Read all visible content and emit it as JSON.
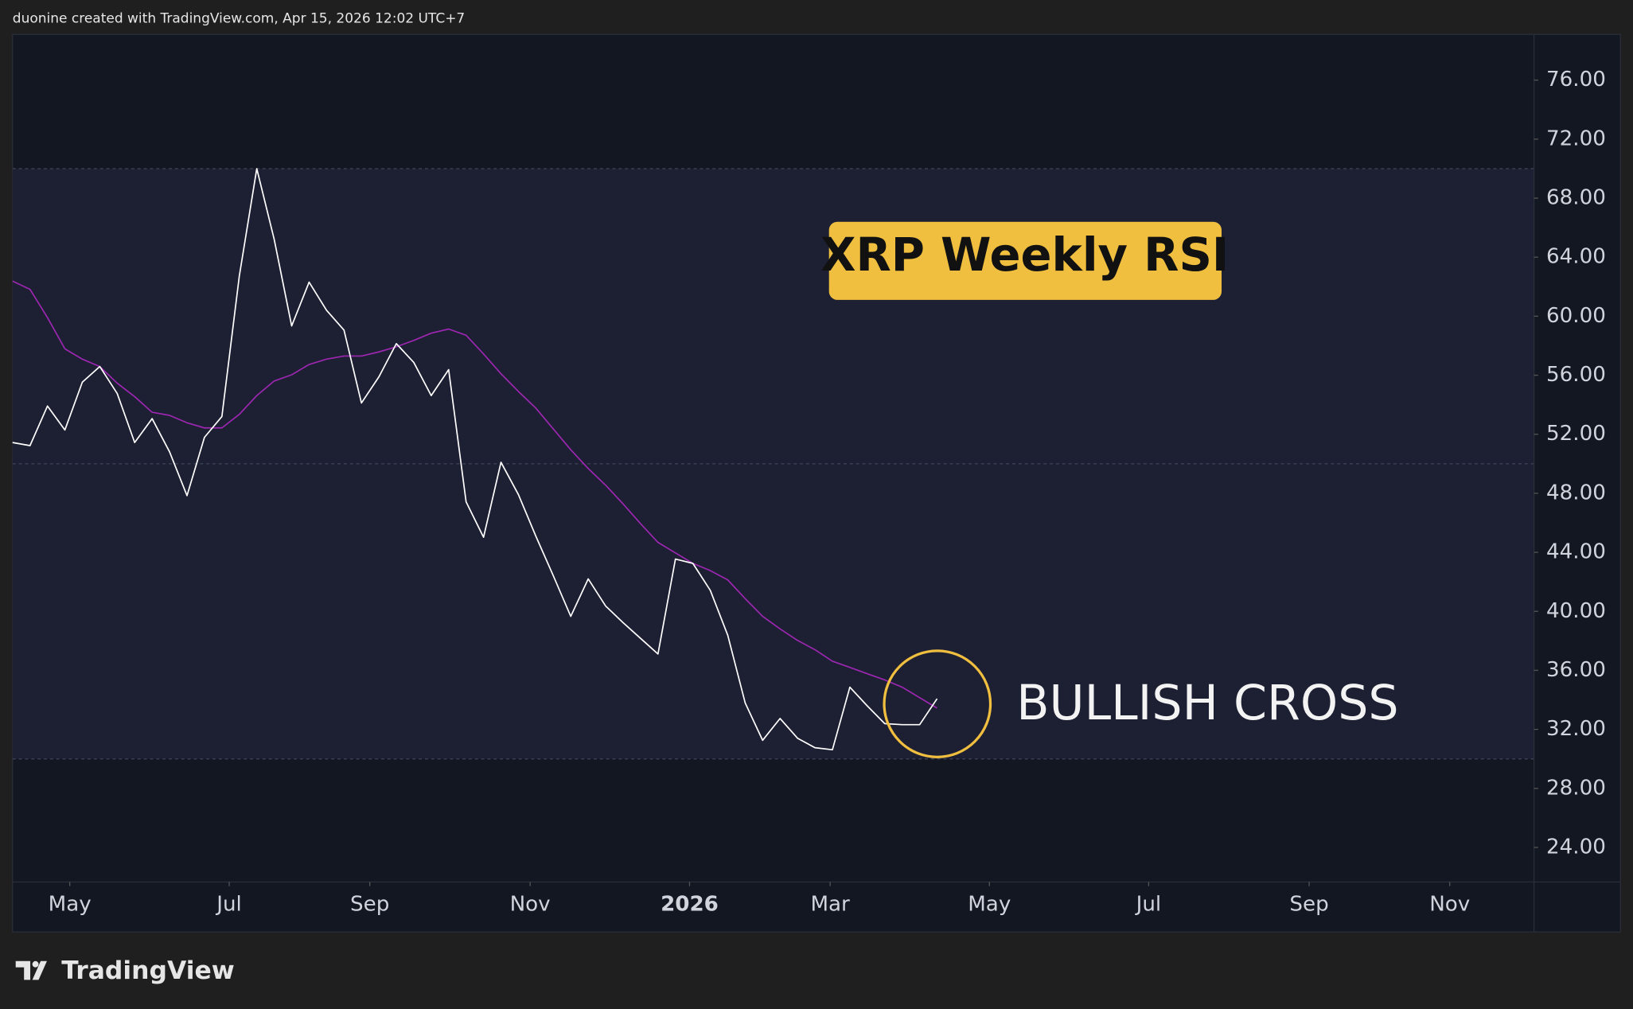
{
  "chart_data": {
    "type": "line",
    "caption": "duonine created with TradingView.com, Apr 15, 2026 12:02 UTC+7",
    "title": "XRP Weekly RSI",
    "annotation": "BULLISH CROSS",
    "brand": "TradingView",
    "x": [
      0,
      1,
      2,
      3,
      4,
      5,
      6,
      7,
      8,
      9,
      10,
      11,
      12,
      13,
      14,
      15,
      16,
      17,
      18,
      19,
      20,
      21,
      22,
      23,
      24,
      25,
      26,
      27,
      28,
      29,
      30,
      31,
      32,
      33,
      34,
      35,
      36,
      37,
      38,
      39,
      40,
      41,
      42,
      43,
      44,
      45,
      46,
      47,
      48,
      49,
      50,
      51,
      52,
      53
    ],
    "series": [
      {
        "color": "#ffffff",
        "values": [
          51.44,
          51.23,
          53.91,
          52.29,
          55.53,
          56.59,
          54.76,
          51.44,
          53.06,
          50.81,
          47.84,
          51.79,
          53.2,
          62.73,
          70.0,
          65.2,
          59.34,
          62.31,
          60.4,
          59.06,
          54.12,
          55.89,
          58.14,
          56.87,
          54.62,
          56.38,
          47.42,
          45.02,
          50.1,
          47.91,
          45.09,
          42.41,
          39.66,
          42.2,
          40.36,
          39.23,
          38.17,
          37.11,
          43.54,
          43.25,
          41.42,
          38.38,
          33.79,
          31.26,
          32.74,
          31.4,
          30.76,
          30.62,
          34.86,
          33.59,
          32.39,
          32.32,
          32.32,
          34.08
        ]
      },
      {
        "color": "#9c27b0",
        "values": [
          62.38,
          61.82,
          59.91,
          57.79,
          57.09,
          56.59,
          55.46,
          54.55,
          53.49,
          53.28,
          52.78,
          52.43,
          52.43,
          53.35,
          54.62,
          55.61,
          56.03,
          56.73,
          57.09,
          57.3,
          57.3,
          57.58,
          57.93,
          58.36,
          58.85,
          59.13,
          58.71,
          57.44,
          56.1,
          54.9,
          53.77,
          52.36,
          50.95,
          49.68,
          48.55,
          47.28,
          45.94,
          44.67,
          43.96,
          43.25,
          42.76,
          42.13,
          40.86,
          39.66,
          38.81,
          38.03,
          37.4,
          36.62,
          36.2,
          35.77,
          35.35,
          34.86,
          34.15,
          33.44
        ]
      }
    ],
    "levels": [
      70,
      50,
      30
    ],
    "xlim": [
      0,
      87.22
    ],
    "xticks": [
      {
        "value": 3.28,
        "label": "May"
      },
      {
        "value": 12.42,
        "label": "Jul"
      },
      {
        "value": 20.48,
        "label": "Sep"
      },
      {
        "value": 29.67,
        "label": "Nov"
      },
      {
        "value": 38.81,
        "label": "2026"
      },
      {
        "value": 46.87,
        "label": "Mar"
      },
      {
        "value": 56.0,
        "label": "May"
      },
      {
        "value": 65.13,
        "label": "Jul"
      },
      {
        "value": 74.33,
        "label": "Sep"
      },
      {
        "value": 82.39,
        "label": "Nov"
      }
    ],
    "ylim": [
      21.66,
      79.1
    ],
    "yticks": [
      {
        "value": 76,
        "label": "76.00"
      },
      {
        "value": 72,
        "label": "72.00"
      },
      {
        "value": 68,
        "label": "68.00"
      },
      {
        "value": 64,
        "label": "64.00"
      },
      {
        "value": 60,
        "label": "60.00"
      },
      {
        "value": 56,
        "label": "56.00"
      },
      {
        "value": 52,
        "label": "52.00"
      },
      {
        "value": 48,
        "label": "48.00"
      },
      {
        "value": 44,
        "label": "44.00"
      },
      {
        "value": 40,
        "label": "40.00"
      },
      {
        "value": 36,
        "label": "36.00"
      },
      {
        "value": 32,
        "label": "32.00"
      },
      {
        "value": 28,
        "label": "28.00"
      },
      {
        "value": 24,
        "label": "24.00"
      }
    ]
  }
}
